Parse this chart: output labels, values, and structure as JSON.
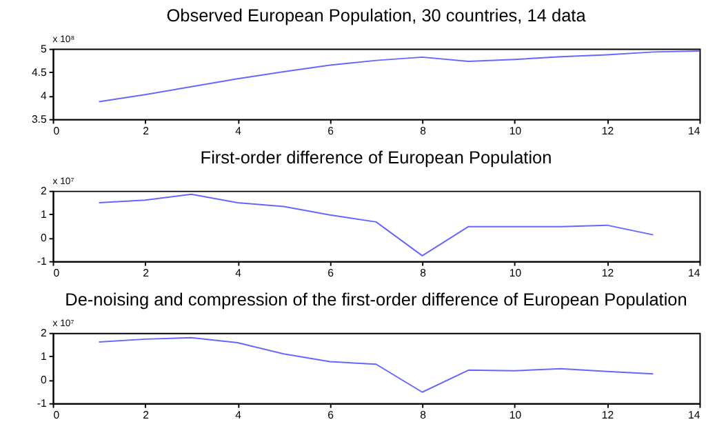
{
  "chart_data": [
    {
      "type": "line",
      "title": "Observed European Population, 30 countries, 14 data",
      "annotations": [
        "x 10⁸"
      ],
      "x": [
        1,
        2,
        3,
        4,
        5,
        6,
        7,
        8,
        9,
        10,
        11,
        12,
        13,
        14
      ],
      "series": [
        {
          "color": "#6666ff",
          "values": [
            3.87,
            4.02,
            4.19,
            4.36,
            4.51,
            4.65,
            4.75,
            4.82,
            4.73,
            4.77,
            4.83,
            4.87,
            4.93,
            4.95
          ]
        }
      ],
      "xlim": [
        0,
        14
      ],
      "xticks": [
        0,
        2,
        4,
        6,
        8,
        10,
        12,
        14
      ],
      "ylim": [
        3.5,
        5
      ],
      "yticks": [
        3.5,
        4,
        4.5,
        5
      ],
      "grid": false
    },
    {
      "type": "line",
      "title": "First-order difference of European Population",
      "annotations": [
        "x 10⁷"
      ],
      "x": [
        1,
        2,
        3,
        4,
        5,
        6,
        7,
        8,
        9,
        10,
        11,
        12,
        13
      ],
      "series": [
        {
          "color": "#6666ff",
          "values": [
            1.49,
            1.6,
            1.85,
            1.49,
            1.33,
            0.97,
            0.67,
            -0.77,
            0.47,
            0.47,
            0.47,
            0.53,
            0.12
          ]
        }
      ],
      "xlim": [
        0,
        14
      ],
      "xticks": [
        0,
        2,
        4,
        6,
        8,
        10,
        12,
        14
      ],
      "ylim": [
        -1,
        2
      ],
      "yticks": [
        -1,
        0,
        1,
        2
      ],
      "grid": false
    },
    {
      "type": "line",
      "title": "De-noising and compression of the first-order difference of European Population",
      "annotations": [
        "x 10⁷"
      ],
      "x": [
        1,
        2,
        3,
        4,
        5,
        6,
        7,
        8,
        9,
        10,
        11,
        12,
        13
      ],
      "series": [
        {
          "color": "#6666ff",
          "values": [
            1.61,
            1.73,
            1.79,
            1.58,
            1.1,
            0.77,
            0.66,
            -0.53,
            0.41,
            0.38,
            0.47,
            0.35,
            0.25
          ]
        }
      ],
      "xlim": [
        0,
        14
      ],
      "xticks": [
        0,
        2,
        4,
        6,
        8,
        10,
        12,
        14
      ],
      "ylim": [
        -1,
        2
      ],
      "yticks": [
        -1,
        0,
        1,
        2
      ],
      "grid": false
    }
  ]
}
